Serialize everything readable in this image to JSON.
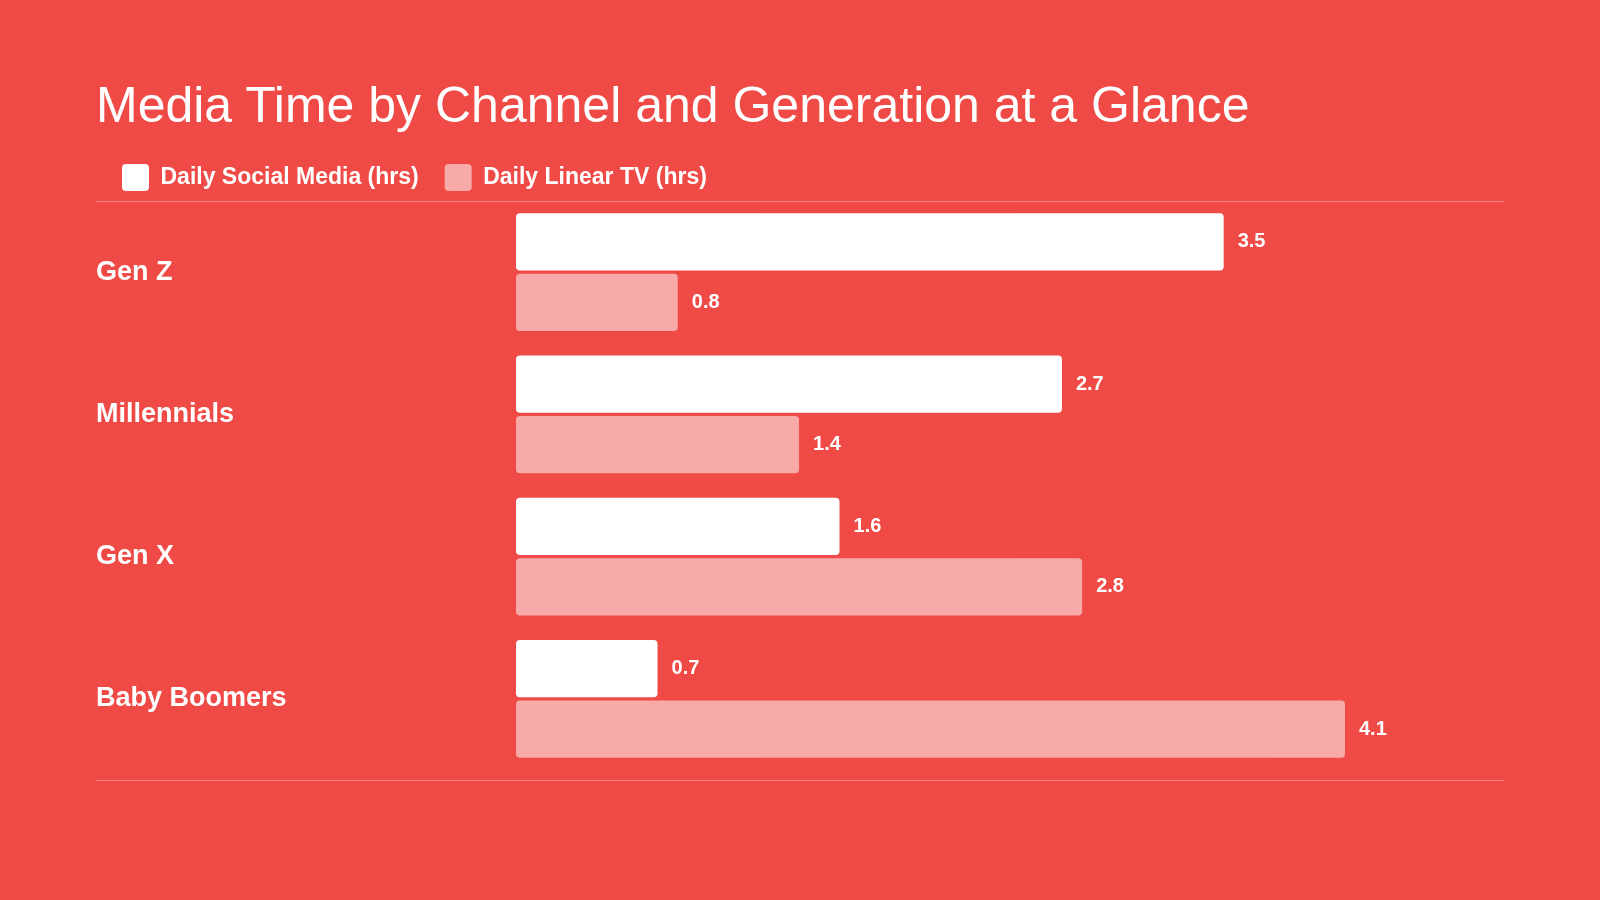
{
  "chart_data": {
    "type": "bar",
    "orientation": "horizontal",
    "title": "Media Time by Channel and Generation at a Glance",
    "categories": [
      "Gen Z",
      "Millennials",
      "Gen X",
      "Baby Boomers"
    ],
    "series": [
      {
        "name": "Daily Social Media (hrs)",
        "color": "#ffffff",
        "values": [
          3.5,
          2.7,
          1.6,
          0.7
        ]
      },
      {
        "name": "Daily Linear TV (hrs)",
        "color": "#f7aaa8",
        "values": [
          0.8,
          1.4,
          2.8,
          4.1
        ]
      }
    ],
    "data_labels": true,
    "legend": "top left",
    "tick_labels": "y"
  }
}
